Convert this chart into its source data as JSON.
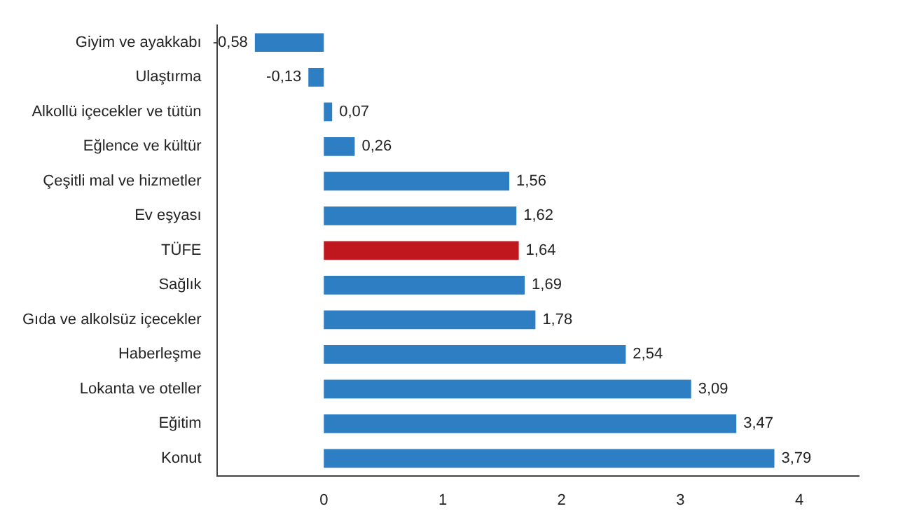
{
  "chart_data": {
    "type": "bar",
    "orientation": "horizontal",
    "categories": [
      "Giyim ve ayakkabı",
      "Ulaştırma",
      "Alkollü içecekler ve tütün",
      "Eğlence ve kültür",
      "Çeşitli mal ve hizmetler",
      "Ev eşyası",
      "TÜFE",
      "Sağlık",
      "Gıda ve alkolsüz içecekler",
      "Haberleşme",
      "Lokanta ve oteller",
      "Eğitim",
      "Konut"
    ],
    "values": [
      -0.58,
      -0.13,
      0.07,
      0.26,
      1.56,
      1.62,
      1.64,
      1.69,
      1.78,
      2.54,
      3.09,
      3.47,
      3.79
    ],
    "value_labels": [
      "-0,58",
      "-0,13",
      "0,07",
      "0,26",
      "1,56",
      "1,62",
      "1,64",
      "1,69",
      "1,78",
      "2,54",
      "3,09",
      "3,47",
      "3,79"
    ],
    "colors": [
      "#2e7ec4",
      "#2e7ec4",
      "#2e7ec4",
      "#2e7ec4",
      "#2e7ec4",
      "#2e7ec4",
      "#c0171e",
      "#2e7ec4",
      "#2e7ec4",
      "#2e7ec4",
      "#2e7ec4",
      "#2e7ec4",
      "#2e7ec4"
    ],
    "xlim": [
      -0.9,
      4.5
    ],
    "xticks": [
      0,
      1,
      2,
      3,
      4
    ],
    "grid": false,
    "legend": false
  }
}
